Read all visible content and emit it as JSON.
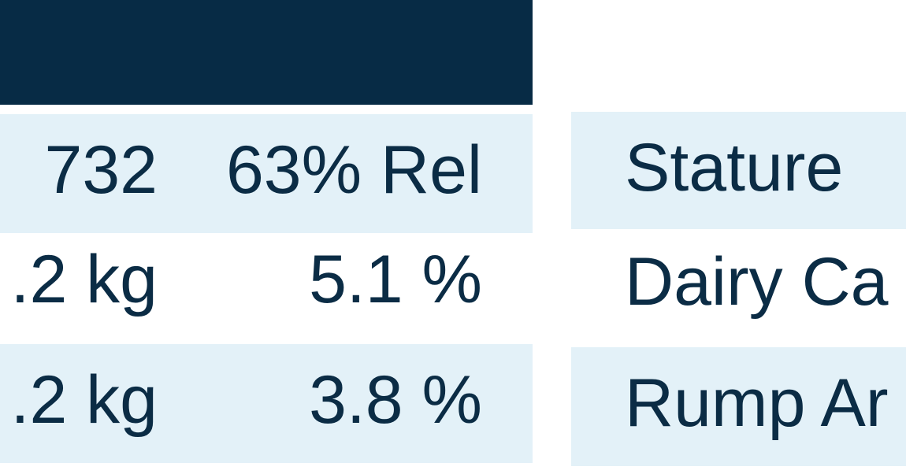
{
  "left_table": {
    "rows": [
      [
        "732",
        "63% Rel"
      ],
      [
        ".2 kg",
        "5.1 %"
      ],
      [
        ".2 kg",
        "3.8 %"
      ]
    ]
  },
  "right_table": {
    "rows": [
      "Stature",
      "Dairy Ca",
      "Rump Ar"
    ]
  }
}
